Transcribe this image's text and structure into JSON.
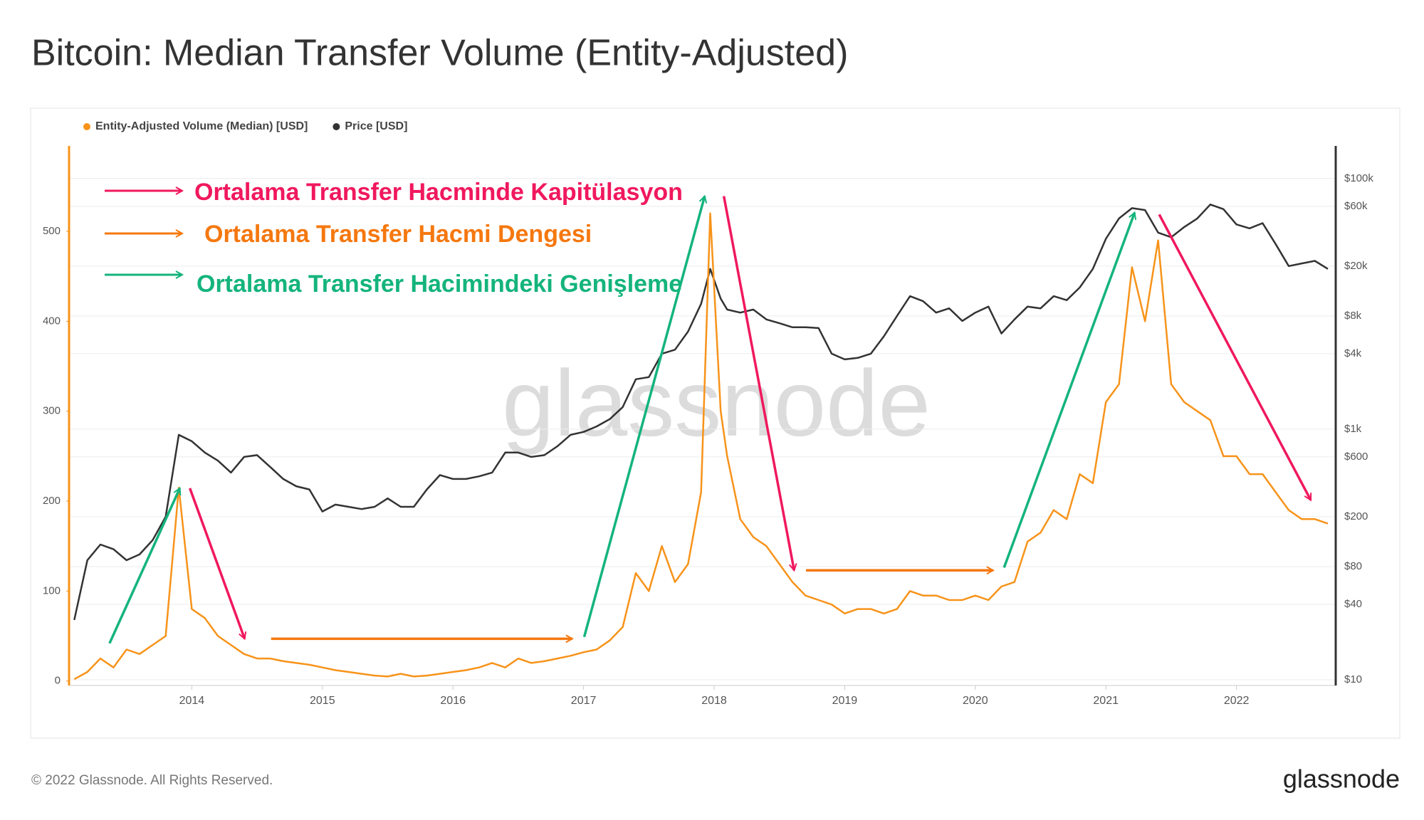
{
  "chart_data": {
    "type": "line",
    "title": "Bitcoin: Median Transfer Volume (Entity-Adjusted)",
    "x": [
      2013.1,
      2013.2,
      2013.3,
      2013.4,
      2013.5,
      2013.6,
      2013.7,
      2013.8,
      2013.9,
      2014.0,
      2014.1,
      2014.2,
      2014.3,
      2014.4,
      2014.5,
      2014.6,
      2014.7,
      2014.8,
      2014.9,
      2015.0,
      2015.1,
      2015.2,
      2015.3,
      2015.4,
      2015.5,
      2015.6,
      2015.7,
      2015.8,
      2015.9,
      2016.0,
      2016.1,
      2016.2,
      2016.3,
      2016.4,
      2016.5,
      2016.6,
      2016.7,
      2016.8,
      2016.9,
      2017.0,
      2017.1,
      2017.2,
      2017.3,
      2017.4,
      2017.5,
      2017.6,
      2017.7,
      2017.8,
      2017.9,
      2017.97,
      2018.05,
      2018.1,
      2018.2,
      2018.3,
      2018.4,
      2018.5,
      2018.6,
      2018.7,
      2018.8,
      2018.9,
      2019.0,
      2019.1,
      2019.2,
      2019.3,
      2019.4,
      2019.5,
      2019.6,
      2019.7,
      2019.8,
      2019.9,
      2020.0,
      2020.1,
      2020.2,
      2020.3,
      2020.4,
      2020.5,
      2020.6,
      2020.7,
      2020.8,
      2020.9,
      2021.0,
      2021.1,
      2021.2,
      2021.3,
      2021.4,
      2021.5,
      2021.6,
      2021.7,
      2021.8,
      2021.9,
      2022.0,
      2022.1,
      2022.2,
      2022.3,
      2022.4,
      2022.5,
      2022.6,
      2022.7
    ],
    "series": [
      {
        "name": "Entity-Adjusted Volume (Median) [USD]",
        "color": "#f7931a",
        "axis": "y",
        "values": [
          2,
          10,
          25,
          15,
          35,
          30,
          40,
          50,
          215,
          80,
          70,
          50,
          40,
          30,
          25,
          25,
          22,
          20,
          18,
          15,
          12,
          10,
          8,
          6,
          5,
          8,
          5,
          6,
          8,
          10,
          12,
          15,
          20,
          15,
          25,
          20,
          22,
          25,
          28,
          32,
          35,
          45,
          60,
          120,
          100,
          150,
          110,
          130,
          210,
          520,
          300,
          250,
          180,
          160,
          150,
          130,
          110,
          95,
          90,
          85,
          75,
          80,
          80,
          75,
          80,
          100,
          95,
          95,
          90,
          90,
          95,
          90,
          105,
          110,
          155,
          165,
          190,
          180,
          230,
          220,
          310,
          330,
          460,
          400,
          490,
          330,
          310,
          300,
          290,
          250,
          250,
          230,
          230,
          210,
          190,
          180,
          180,
          175
        ]
      },
      {
        "name": "Price [USD]",
        "color": "#333333",
        "axis": "y2",
        "values": [
          30,
          90,
          120,
          110,
          90,
          100,
          130,
          200,
          900,
          800,
          650,
          560,
          450,
          600,
          620,
          500,
          400,
          350,
          330,
          220,
          250,
          240,
          230,
          240,
          280,
          240,
          240,
          330,
          430,
          400,
          400,
          420,
          450,
          650,
          650,
          600,
          620,
          730,
          900,
          950,
          1050,
          1200,
          1500,
          2500,
          2600,
          4000,
          4300,
          6000,
          10000,
          19000,
          11000,
          9000,
          8500,
          9000,
          7500,
          7000,
          6500,
          6500,
          6400,
          4000,
          3600,
          3700,
          4000,
          5500,
          8000,
          11500,
          10500,
          8500,
          9200,
          7300,
          8500,
          9500,
          5800,
          7500,
          9500,
          9200,
          11500,
          10700,
          13500,
          19000,
          33000,
          48000,
          58000,
          56000,
          37000,
          34000,
          41000,
          48000,
          62000,
          57000,
          43000,
          40000,
          44000,
          30000,
          20000,
          21000,
          22000,
          19000
        ]
      }
    ],
    "xlim": [
      2013.06,
      2022.76
    ],
    "xticks": [
      2014,
      2015,
      2016,
      2017,
      2018,
      2019,
      2020,
      2021,
      2022
    ],
    "ylim": [
      -5,
      595
    ],
    "yticks": [
      0,
      100,
      200,
      300,
      400,
      500
    ],
    "y2lim": [
      9,
      182000
    ],
    "y2scale": "log",
    "y2ticks": [
      {
        "value": 100000,
        "label": "$100k"
      },
      {
        "value": 60000,
        "label": "$60k"
      },
      {
        "value": 20000,
        "label": "$20k"
      },
      {
        "value": 8000,
        "label": "$8k"
      },
      {
        "value": 4000,
        "label": "$4k"
      },
      {
        "value": 1000,
        "label": "$1k"
      },
      {
        "value": 600,
        "label": "$600"
      },
      {
        "value": 200,
        "label": "$200"
      },
      {
        "value": 80,
        "label": "$80"
      },
      {
        "value": 40,
        "label": "$40"
      },
      {
        "value": 10,
        "label": "$10"
      }
    ],
    "grid": true,
    "legend": "top-left",
    "annotations": [
      {
        "text": "Ortalama Transfer Hacminde Kapitülasyon",
        "color": "#f0185e"
      },
      {
        "text": "Ortalama Transfer Hacmi Dengesi",
        "color": "#f5780f"
      },
      {
        "text": "Ortalama Transfer Hacimindeki Genişleme",
        "color": "#14b47c"
      }
    ],
    "watermark": "glassnode",
    "footer": "© 2022 Glassnode. All Rights Reserved.",
    "logo": "glassnode"
  }
}
